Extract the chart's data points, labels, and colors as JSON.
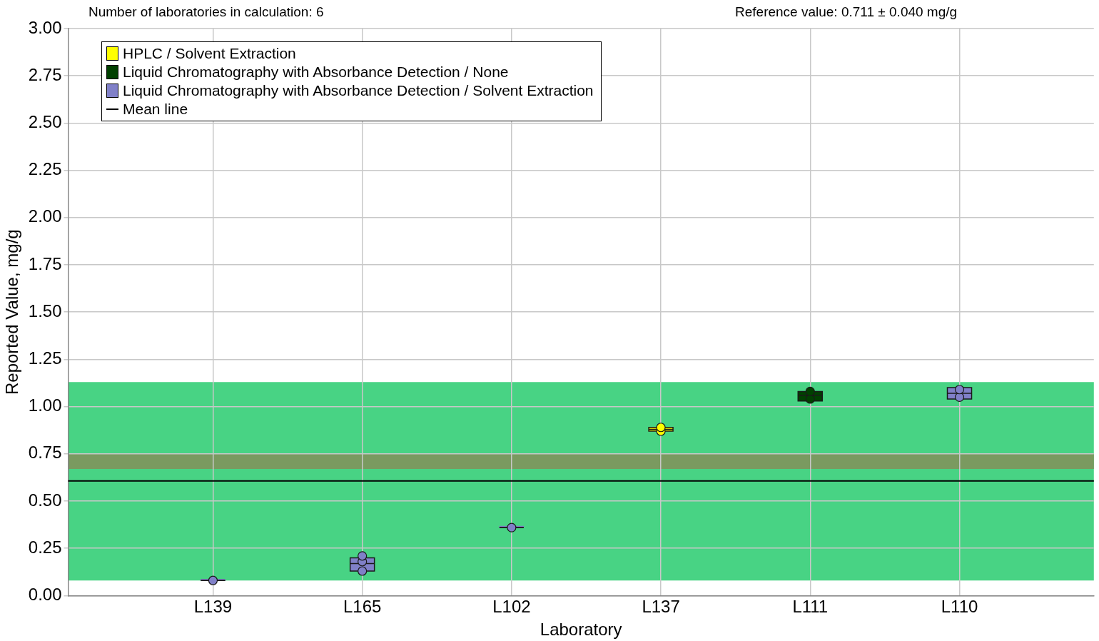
{
  "chart_data": {
    "type": "box",
    "annotations": [
      "Number of laboratories in calculation: 6",
      "Reference value: 0.711 ± 0.040 mg/g"
    ],
    "xlabel": "Laboratory",
    "ylabel": "Reported Value, mg/g",
    "categories": [
      "L139",
      "L165",
      "L102",
      "L137",
      "L111",
      "L110"
    ],
    "ylim": [
      0,
      3
    ],
    "yticks": [
      {
        "value": 0,
        "label": "0.00"
      },
      {
        "value": 0.25,
        "label": "0.25"
      },
      {
        "value": 0.5,
        "label": "0.50"
      },
      {
        "value": 0.75,
        "label": "0.75"
      },
      {
        "value": 1,
        "label": "1.00"
      },
      {
        "value": 1.25,
        "label": "1.25"
      },
      {
        "value": 1.5,
        "label": "1.50"
      },
      {
        "value": 1.75,
        "label": "1.75"
      },
      {
        "value": 2,
        "label": "2.00"
      },
      {
        "value": 2.25,
        "label": "2.25"
      },
      {
        "value": 2.5,
        "label": "2.50"
      },
      {
        "value": 2.75,
        "label": "2.75"
      },
      {
        "value": 3,
        "label": "3.00"
      }
    ],
    "grid": true,
    "legend": "top left",
    "marker": "circle",
    "series": [
      {
        "name": "HPLC / Solvent Extraction",
        "color": "#ffff00",
        "boxes": [
          null,
          null,
          null,
          {
            "low": 0.87,
            "q1": 0.87,
            "median": 0.88,
            "q3": 0.89,
            "high": 0.89
          },
          null,
          null
        ]
      },
      {
        "name": "Liquid Chromatography with Absorbance Detection / None",
        "color": "#004000",
        "boxes": [
          null,
          null,
          null,
          null,
          {
            "low": 1.03,
            "q1": 1.03,
            "median": 1.06,
            "q3": 1.08,
            "high": 1.08
          },
          null
        ]
      },
      {
        "name": "Liquid Chromatography with Absorbance Detection / Solvent Extraction",
        "color": "#8080c8",
        "boxes": [
          {
            "low": 0.08,
            "q1": 0.08,
            "median": 0.08,
            "q3": 0.08,
            "high": 0.08
          },
          {
            "low": 0.13,
            "q1": 0.13,
            "median": 0.17,
            "q3": 0.2,
            "high": 0.21
          },
          {
            "low": 0.36,
            "q1": 0.36,
            "median": 0.36,
            "q3": 0.36,
            "high": 0.36
          },
          null,
          null,
          {
            "low": 1.04,
            "q1": 1.04,
            "median": 1.07,
            "q3": 1.1,
            "high": 1.1
          }
        ]
      },
      {
        "type": "scatter",
        "color": "#ffff00",
        "x": [
          "L137",
          "L137"
        ],
        "values": [
          0.87,
          0.89
        ]
      },
      {
        "type": "scatter",
        "color": "#004000",
        "x": [
          "L111",
          "L111"
        ],
        "values": [
          1.04,
          1.08
        ]
      },
      {
        "type": "scatter",
        "color": "#8080c8",
        "x": [
          "L139",
          "L165",
          "L165",
          "L165",
          "L102",
          "L110",
          "L110"
        ],
        "values": [
          0.08,
          0.13,
          0.18,
          0.21,
          0.36,
          1.05,
          1.09
        ]
      }
    ],
    "ref_lines": [
      {
        "axis": "y",
        "value": 0.607,
        "label": "Mean line",
        "color": "#000000",
        "line_style": "solid"
      }
    ],
    "bands": [
      {
        "axis": "y",
        "from": 0.08,
        "to": 1.13,
        "color": "#48d384"
      },
      {
        "axis": "y",
        "from": 0.67,
        "to": 0.75,
        "color": "#7a9a60"
      }
    ]
  }
}
